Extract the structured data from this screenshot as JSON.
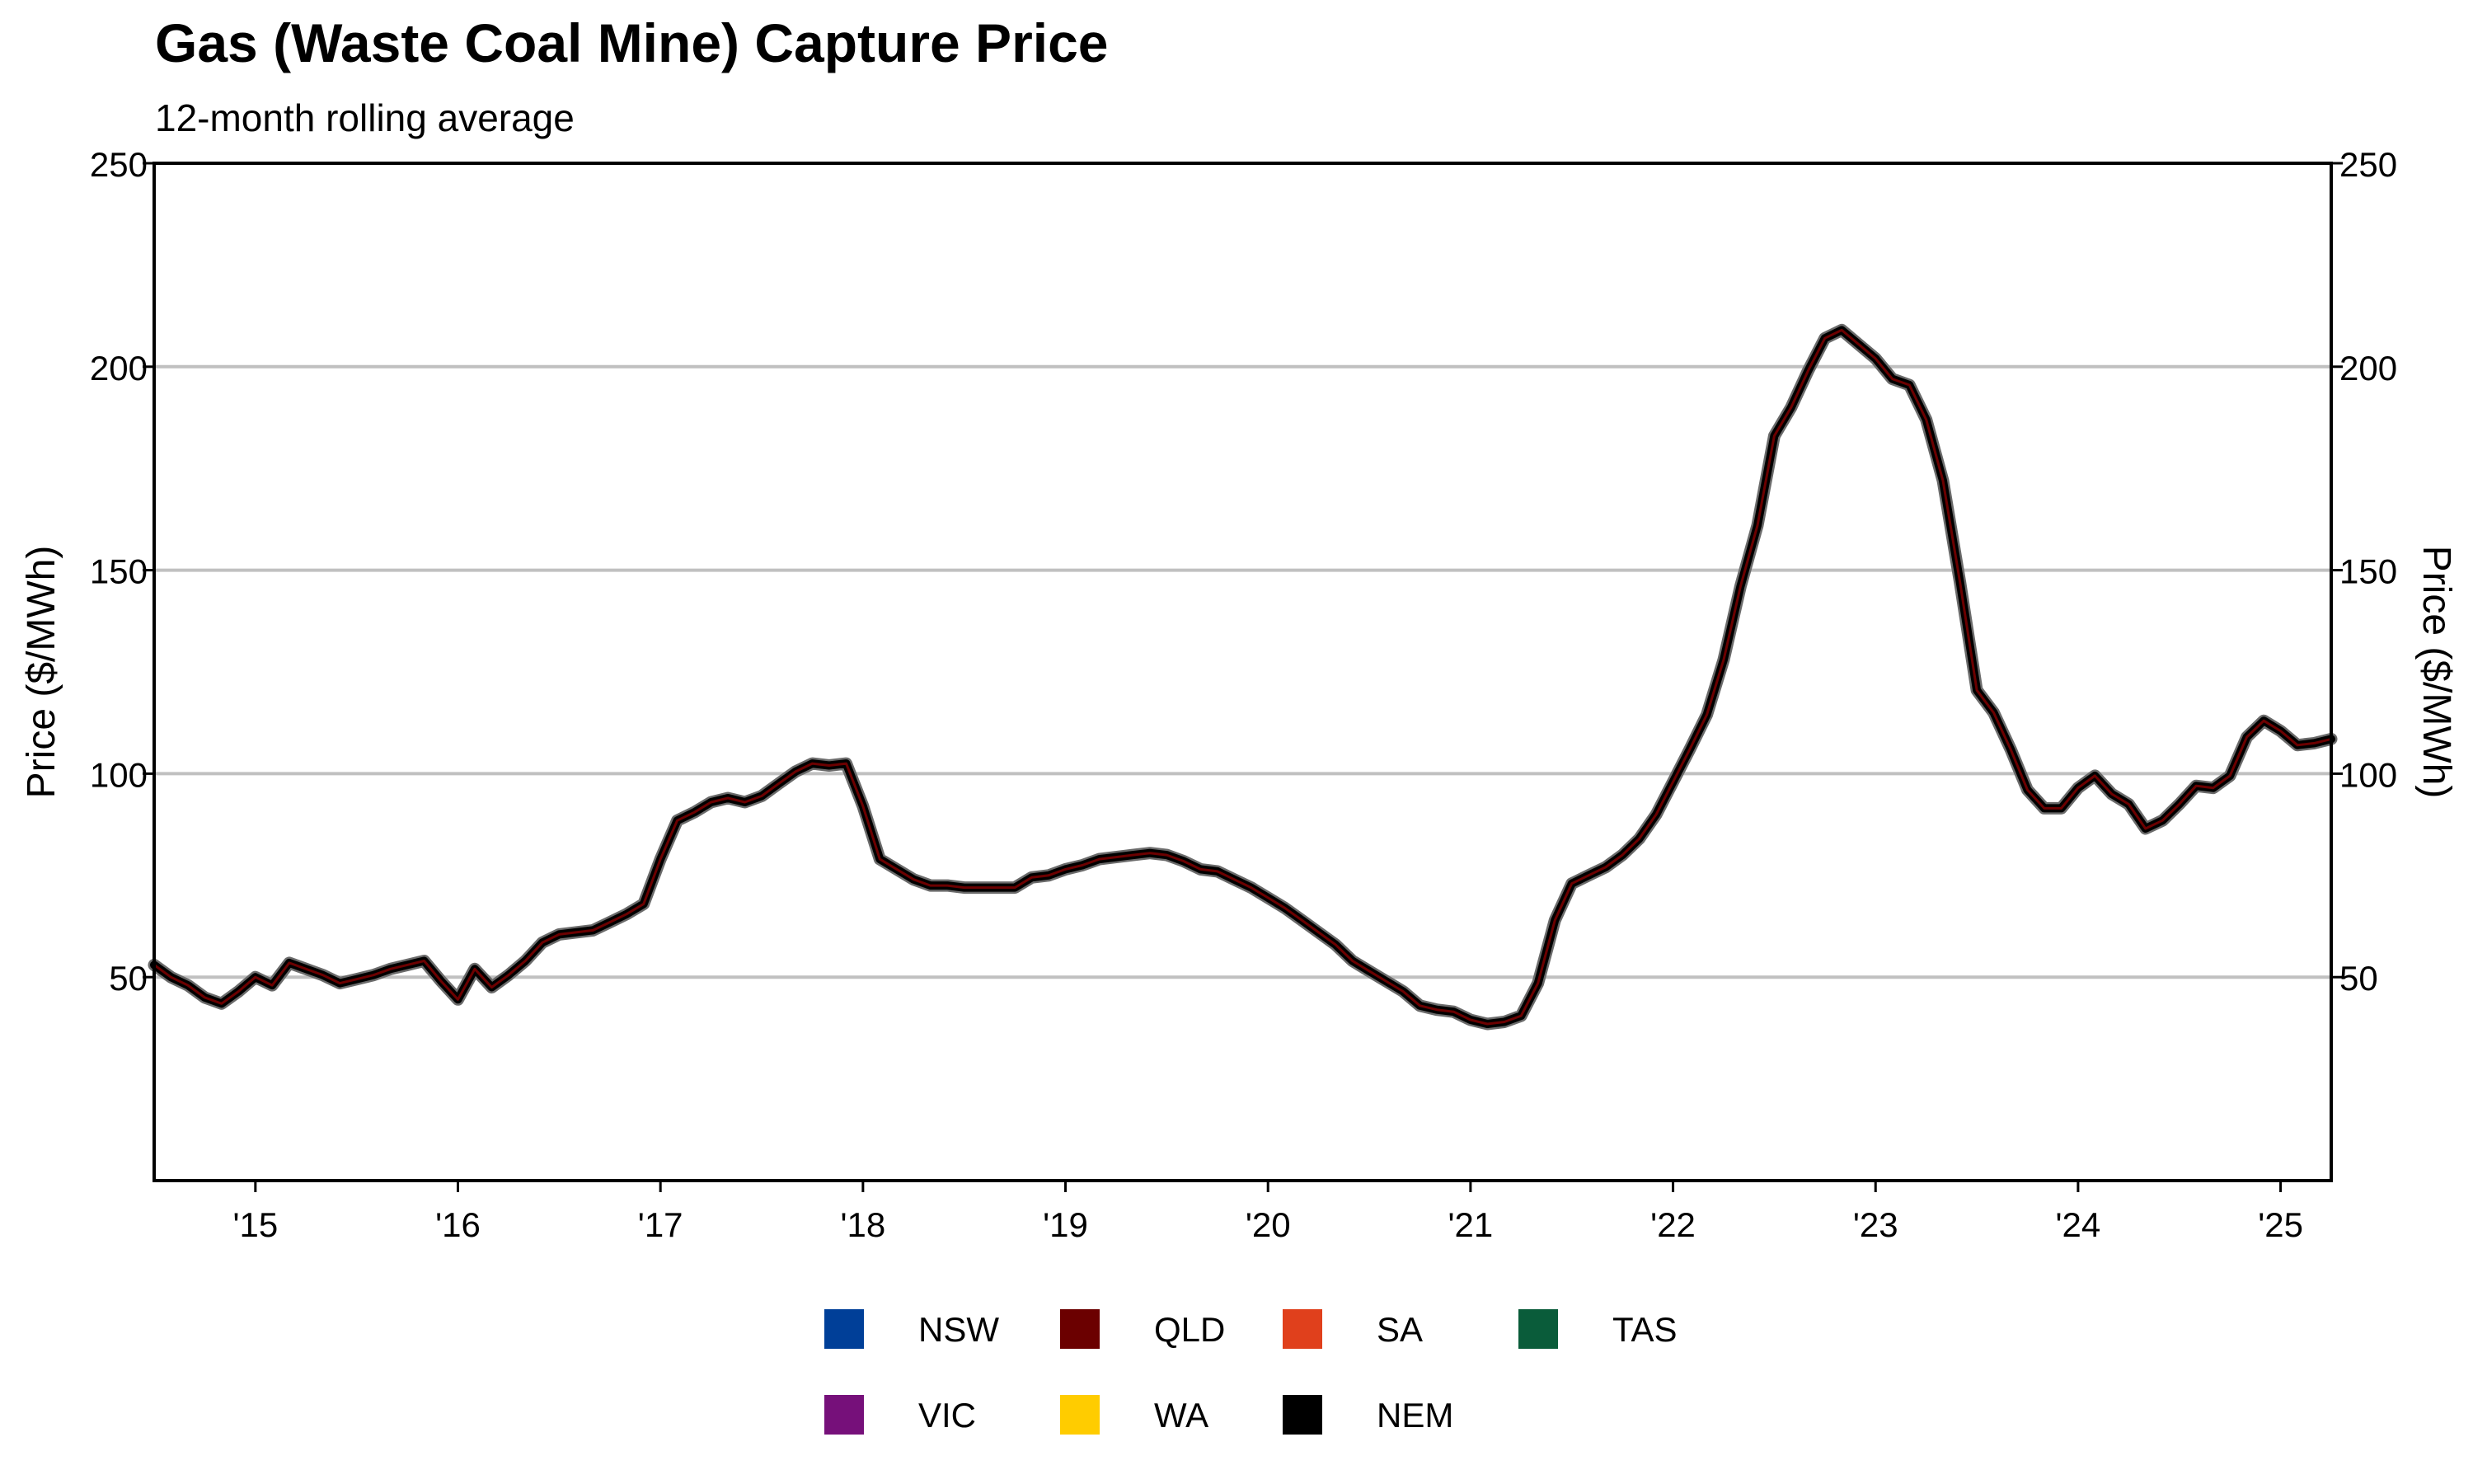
{
  "chart_data": {
    "type": "line",
    "title": "Gas (Waste Coal Mine) Capture Price",
    "subtitle": "12-month rolling average",
    "ylabel_left": "Price ($/MWh)",
    "ylabel_right": "Price ($/MWh)",
    "xlabel": "",
    "ylim": [
      0,
      250
    ],
    "yticks": [
      50,
      100,
      150,
      200,
      250
    ],
    "xlim": [
      2014.5,
      2025.25
    ],
    "xticks": [
      {
        "value": 2015,
        "label": "'15"
      },
      {
        "value": 2016,
        "label": "'16"
      },
      {
        "value": 2017,
        "label": "'17"
      },
      {
        "value": 2018,
        "label": "'18"
      },
      {
        "value": 2019,
        "label": "'19"
      },
      {
        "value": 2020,
        "label": "'20"
      },
      {
        "value": 2021,
        "label": "'21"
      },
      {
        "value": 2022,
        "label": "'22"
      },
      {
        "value": 2023,
        "label": "'23"
      },
      {
        "value": 2024,
        "label": "'24"
      },
      {
        "value": 2025,
        "label": "'25"
      }
    ],
    "grid": "horizontal",
    "legend_position": "bottom-center",
    "legend": [
      {
        "name": "NSW",
        "color": "#003f98"
      },
      {
        "name": "QLD",
        "color": "#6b0000"
      },
      {
        "name": "SA",
        "color": "#e0401c"
      },
      {
        "name": "TAS",
        "color": "#0a5c3a"
      },
      {
        "name": "VIC",
        "color": "#76107a"
      },
      {
        "name": "WA",
        "color": "#ffcc00"
      },
      {
        "name": "NEM",
        "color": "#000000"
      }
    ],
    "series": [
      {
        "name": "QLD",
        "color": "#6b0000",
        "points": [
          [
            2014.5,
            53
          ],
          [
            2014.583,
            50
          ],
          [
            2014.667,
            48
          ],
          [
            2014.75,
            45
          ],
          [
            2014.833,
            43.5
          ],
          [
            2014.917,
            46.5
          ],
          [
            2015.0,
            50
          ],
          [
            2015.083,
            48
          ],
          [
            2015.167,
            53.5
          ],
          [
            2015.25,
            52
          ],
          [
            2015.333,
            50.5
          ],
          [
            2015.417,
            48.5
          ],
          [
            2015.5,
            49.5
          ],
          [
            2015.583,
            50.5
          ],
          [
            2015.667,
            52
          ],
          [
            2015.75,
            53
          ],
          [
            2015.833,
            54
          ],
          [
            2015.917,
            49
          ],
          [
            2016.0,
            44.5
          ],
          [
            2016.083,
            52
          ],
          [
            2016.167,
            47.5
          ],
          [
            2016.25,
            50.5
          ],
          [
            2016.333,
            54
          ],
          [
            2016.417,
            58.5
          ],
          [
            2016.5,
            60.5
          ],
          [
            2016.583,
            61
          ],
          [
            2016.667,
            61.5
          ],
          [
            2016.75,
            63.5
          ],
          [
            2016.833,
            65.5
          ],
          [
            2016.917,
            68
          ],
          [
            2017.0,
            79
          ],
          [
            2017.083,
            88.5
          ],
          [
            2017.167,
            90.5
          ],
          [
            2017.25,
            93
          ],
          [
            2017.333,
            94
          ],
          [
            2017.417,
            93
          ],
          [
            2017.5,
            94.5
          ],
          [
            2017.583,
            97.5
          ],
          [
            2017.667,
            100.5
          ],
          [
            2017.75,
            102.5
          ],
          [
            2017.833,
            102
          ],
          [
            2017.917,
            102.5
          ],
          [
            2018.0,
            92
          ],
          [
            2018.083,
            79
          ],
          [
            2018.167,
            76.5
          ],
          [
            2018.25,
            74
          ],
          [
            2018.333,
            72.5
          ],
          [
            2018.417,
            72.5
          ],
          [
            2018.5,
            72
          ],
          [
            2018.583,
            72
          ],
          [
            2018.667,
            72
          ],
          [
            2018.75,
            72
          ],
          [
            2018.833,
            74.5
          ],
          [
            2018.917,
            75
          ],
          [
            2019.0,
            76.5
          ],
          [
            2019.083,
            77.5
          ],
          [
            2019.167,
            79
          ],
          [
            2019.25,
            79.5
          ],
          [
            2019.333,
            80
          ],
          [
            2019.417,
            80.5
          ],
          [
            2019.5,
            80
          ],
          [
            2019.583,
            78.5
          ],
          [
            2019.667,
            76.5
          ],
          [
            2019.75,
            76
          ],
          [
            2019.833,
            74
          ],
          [
            2019.917,
            72
          ],
          [
            2020.0,
            69.5
          ],
          [
            2020.083,
            67
          ],
          [
            2020.167,
            64
          ],
          [
            2020.25,
            61
          ],
          [
            2020.333,
            58
          ],
          [
            2020.417,
            54
          ],
          [
            2020.5,
            51.5
          ],
          [
            2020.583,
            49
          ],
          [
            2020.667,
            46.5
          ],
          [
            2020.75,
            43
          ],
          [
            2020.833,
            42
          ],
          [
            2020.917,
            41.5
          ],
          [
            2021.0,
            39.5
          ],
          [
            2021.083,
            38.5
          ],
          [
            2021.167,
            39
          ],
          [
            2021.25,
            40.5
          ],
          [
            2021.333,
            48.5
          ],
          [
            2021.417,
            64
          ],
          [
            2021.5,
            73
          ],
          [
            2021.583,
            75
          ],
          [
            2021.667,
            77
          ],
          [
            2021.75,
            80
          ],
          [
            2021.833,
            84
          ],
          [
            2021.917,
            90
          ],
          [
            2022.0,
            98
          ],
          [
            2022.083,
            106
          ],
          [
            2022.167,
            114.5
          ],
          [
            2022.25,
            128
          ],
          [
            2022.333,
            146
          ],
          [
            2022.417,
            161
          ],
          [
            2022.5,
            183
          ],
          [
            2022.583,
            190
          ],
          [
            2022.667,
            199
          ],
          [
            2022.75,
            207
          ],
          [
            2022.833,
            209
          ],
          [
            2022.917,
            205.5
          ],
          [
            2023.0,
            202
          ],
          [
            2023.083,
            197
          ],
          [
            2023.167,
            195.5
          ],
          [
            2023.25,
            187
          ],
          [
            2023.333,
            172
          ],
          [
            2023.417,
            147
          ],
          [
            2023.5,
            120.5
          ],
          [
            2023.583,
            115
          ],
          [
            2023.667,
            106
          ],
          [
            2023.75,
            96
          ],
          [
            2023.833,
            91.5
          ],
          [
            2023.917,
            91.5
          ],
          [
            2024.0,
            96.5
          ],
          [
            2024.083,
            99.5
          ],
          [
            2024.167,
            95
          ],
          [
            2024.25,
            92.5
          ],
          [
            2024.333,
            86.5
          ],
          [
            2024.417,
            88.5
          ],
          [
            2024.5,
            92.5
          ],
          [
            2024.583,
            97
          ],
          [
            2024.667,
            96.5
          ],
          [
            2024.75,
            99.5
          ],
          [
            2024.833,
            109
          ],
          [
            2024.917,
            113
          ],
          [
            2025.0,
            110.5
          ],
          [
            2025.083,
            107
          ],
          [
            2025.167,
            107.5
          ],
          [
            2025.25,
            108.5
          ]
        ]
      }
    ]
  }
}
